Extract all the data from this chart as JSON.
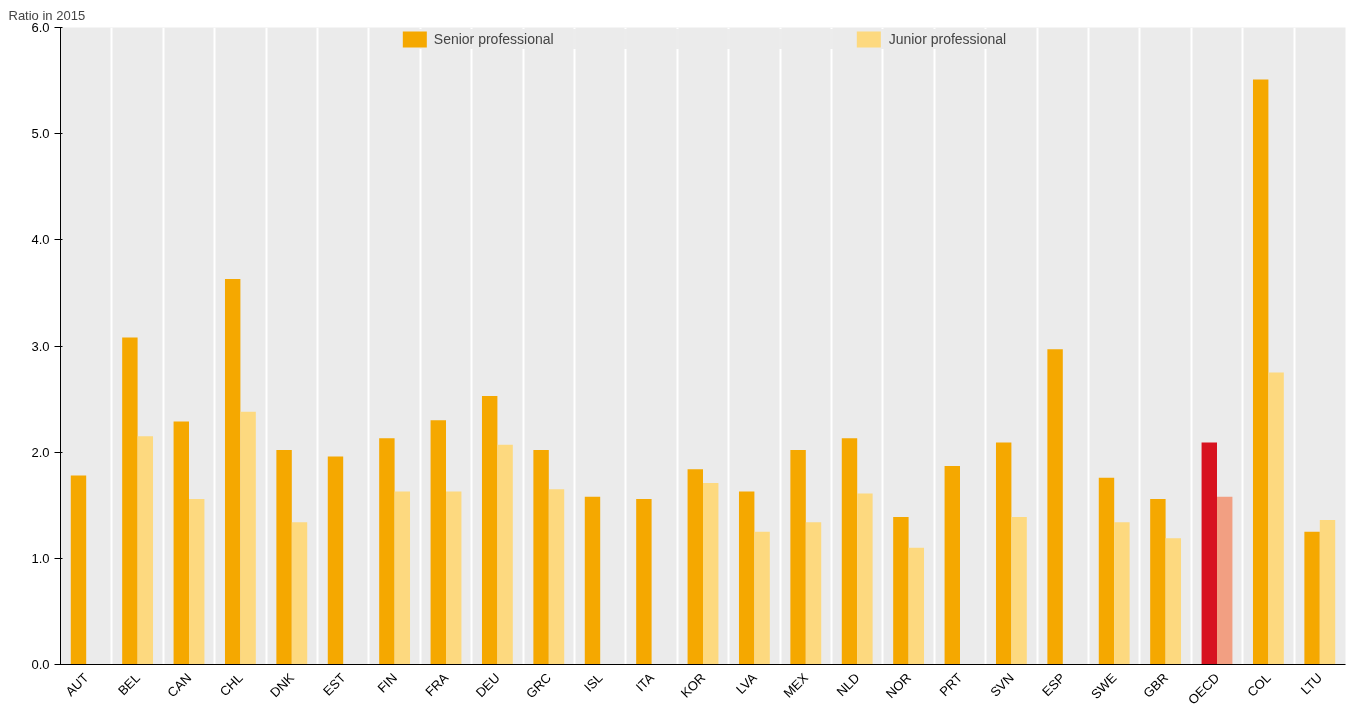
{
  "chart_data": {
    "type": "bar",
    "ylabel": "Ratio in 2015",
    "categories": [
      "AUT",
      "BEL",
      "CAN",
      "CHL",
      "DNK",
      "EST",
      "FIN",
      "FRA",
      "DEU",
      "GRC",
      "ISL",
      "ITA",
      "KOR",
      "LVA",
      "MEX",
      "NLD",
      "NOR",
      "PRT",
      "SVN",
      "ESP",
      "SWE",
      "GBR",
      "OECD",
      "COL",
      "LTU"
    ],
    "series": [
      {
        "name": "Senior professional",
        "color": "#f5a800",
        "colors": [
          "#f5a800",
          "#f5a800",
          "#f5a800",
          "#f5a800",
          "#f5a800",
          "#f5a800",
          "#f5a800",
          "#f5a800",
          "#f5a800",
          "#f5a800",
          "#f5a800",
          "#f5a800",
          "#f5a800",
          "#f5a800",
          "#f5a800",
          "#f5a800",
          "#f5a800",
          "#f5a800",
          "#f5a800",
          "#f5a800",
          "#f5a800",
          "#f5a800",
          "#d7121f",
          "#f5a800",
          "#f5a800"
        ],
        "values": [
          1.78,
          3.08,
          2.29,
          3.63,
          2.02,
          1.96,
          2.13,
          2.3,
          2.53,
          2.02,
          1.58,
          1.56,
          1.84,
          1.63,
          2.02,
          2.13,
          1.39,
          1.87,
          2.09,
          2.97,
          1.76,
          1.56,
          2.09,
          5.51,
          1.25
        ]
      },
      {
        "name": "Junior professional",
        "color": "#fdd97f",
        "colors": [
          "#fdd97f",
          "#fdd97f",
          "#fdd97f",
          "#fdd97f",
          "#fdd97f",
          "#fdd97f",
          "#fdd97f",
          "#fdd97f",
          "#fdd97f",
          "#fdd97f",
          "#fdd97f",
          "#fdd97f",
          "#fdd97f",
          "#fdd97f",
          "#fdd97f",
          "#fdd97f",
          "#fdd97f",
          "#fdd97f",
          "#fdd97f",
          "#fdd97f",
          "#fdd97f",
          "#fdd97f",
          "#f29f82",
          "#fdd97f",
          "#fdd97f"
        ],
        "values": [
          null,
          2.15,
          1.56,
          2.38,
          1.34,
          null,
          1.63,
          1.63,
          2.07,
          1.65,
          null,
          null,
          1.71,
          1.25,
          1.34,
          1.61,
          1.1,
          null,
          1.39,
          null,
          1.34,
          1.19,
          1.58,
          2.75,
          1.36
        ]
      }
    ],
    "ylim": [
      0,
      6
    ],
    "yticks": [
      {
        "value": 0,
        "label": "0.0"
      },
      {
        "value": 1,
        "label": "1.0"
      },
      {
        "value": 2,
        "label": "2.0"
      },
      {
        "value": 3,
        "label": "3.0"
      },
      {
        "value": 4,
        "label": "4.0"
      },
      {
        "value": 5,
        "label": "5.0"
      },
      {
        "value": 6,
        "label": "6.0"
      }
    ],
    "grid": "x",
    "legend": "top"
  }
}
